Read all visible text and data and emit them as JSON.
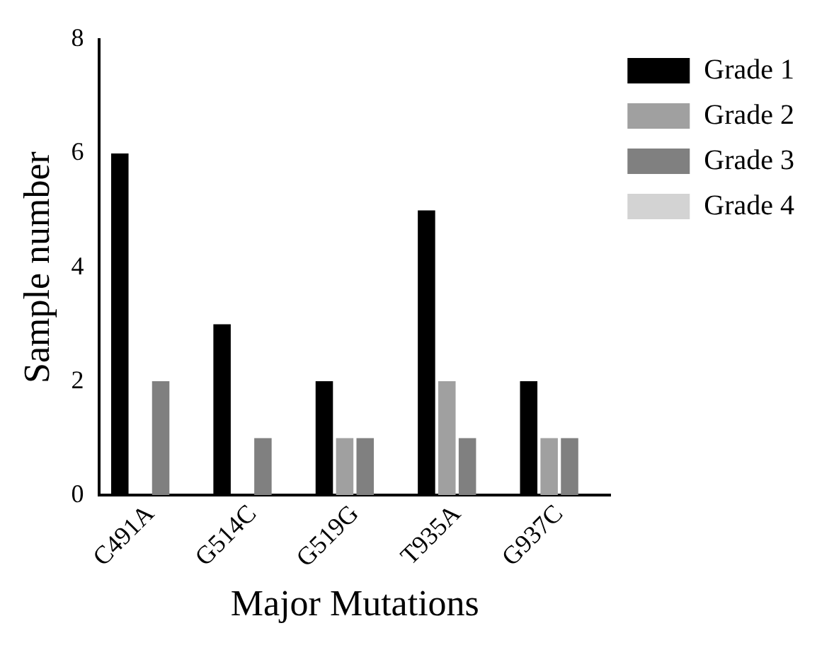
{
  "chart_data": {
    "type": "bar",
    "xlabel": "Major Mutations",
    "ylabel": "Sample number",
    "categories": [
      "C491A",
      "G514C",
      "G519G",
      "T935A",
      "G937C"
    ],
    "series": [
      {
        "name": "Grade 1",
        "color": "#000000",
        "values": [
          6,
          3,
          2,
          5,
          2
        ]
      },
      {
        "name": "Grade 2",
        "color": "#a0a0a0",
        "values": [
          0,
          0,
          1,
          2,
          1
        ]
      },
      {
        "name": "Grade 3",
        "color": "#808080",
        "values": [
          2,
          1,
          1,
          1,
          1
        ]
      },
      {
        "name": "Grade 4",
        "color": "#d3d3d3",
        "values": [
          0,
          0,
          0,
          0,
          0
        ]
      }
    ],
    "ylim": [
      0,
      8
    ],
    "yticks": [
      0,
      2,
      4,
      6,
      8
    ],
    "grid": false,
    "legend": "top right"
  }
}
